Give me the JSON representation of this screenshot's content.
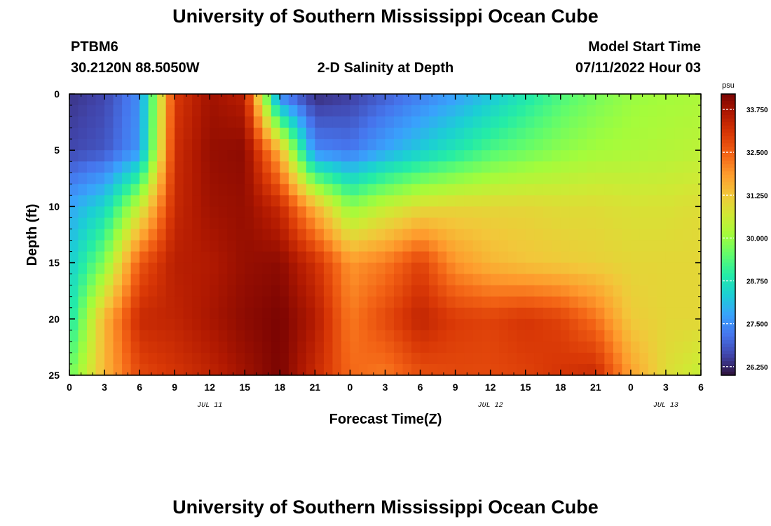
{
  "header": {
    "title": "University of Southern Mississippi Ocean Cube",
    "station_id": "PTBM6",
    "location": "30.2120N  88.5050W",
    "plot_title": "2-D Salinity at Depth",
    "model_start_label": "Model Start Time",
    "model_start_value": "07/11/2022 Hour 03"
  },
  "footer": {
    "title": "University of Southern Mississippi Ocean Cube"
  },
  "chart_data": {
    "type": "heatmap",
    "title": "2-D Salinity at Depth",
    "xlabel": "Forecast Time(Z)",
    "ylabel": "Depth (ft)",
    "x_unit": "hours from 07/11/2022 00Z",
    "xlim": [
      0,
      54
    ],
    "ylim": [
      0,
      25
    ],
    "y_inverted": true,
    "x_ticks": [
      0,
      3,
      6,
      9,
      12,
      15,
      18,
      21,
      24,
      27,
      30,
      33,
      36,
      39,
      42,
      45,
      48,
      51,
      54
    ],
    "x_tick_labels": [
      "0",
      "3",
      "6",
      "9",
      "12",
      "15",
      "18",
      "21",
      "0",
      "3",
      "6",
      "9",
      "12",
      "15",
      "18",
      "21",
      "0",
      "3",
      "6"
    ],
    "y_ticks": [
      0,
      5,
      10,
      15,
      20,
      25
    ],
    "y_tick_labels": [
      "0",
      "5",
      "10",
      "15",
      "20",
      "25"
    ],
    "date_labels": [
      {
        "x": 12,
        "text": "JUL 11"
      },
      {
        "x": 36,
        "text": "JUL 12"
      },
      {
        "x": 51,
        "text": "JUL 13"
      }
    ],
    "colorbar": {
      "unit": "psu",
      "min": 26.0,
      "max": 34.2,
      "ticks": [
        26.25,
        27.5,
        28.75,
        30.0,
        31.25,
        32.5,
        33.75
      ],
      "tick_labels": [
        "26.250",
        "27.500",
        "28.750",
        "30.000",
        "31.250",
        "32.500",
        "33.750"
      ],
      "palette": [
        "#30123b",
        "#4145ab",
        "#4675ed",
        "#39a2fc",
        "#1bcfd4",
        "#24eca6",
        "#61fc6c",
        "#a4fc3b",
        "#d1e834",
        "#f3c63a",
        "#fe9b2d",
        "#f36315",
        "#d93806",
        "#b11901",
        "#7a0402"
      ]
    },
    "grid": {
      "times": [
        0,
        3,
        6,
        9,
        12,
        15,
        18,
        21,
        24,
        27,
        30,
        33,
        36,
        39,
        42,
        45,
        48,
        51,
        54
      ],
      "depths": [
        0,
        5,
        10,
        15,
        20,
        25
      ],
      "values": [
        [
          26.4,
          26.6,
          27.5,
          33.0,
          33.8,
          33.5,
          27.2,
          26.3,
          26.5,
          26.9,
          27.3,
          27.7,
          28.2,
          28.8,
          29.3,
          29.7,
          30.0,
          30.1,
          30.2
        ],
        [
          26.6,
          26.8,
          27.6,
          33.2,
          33.9,
          34.0,
          31.5,
          27.4,
          27.2,
          27.8,
          28.3,
          28.8,
          29.3,
          29.6,
          29.9,
          30.1,
          30.2,
          30.3,
          30.4
        ],
        [
          27.8,
          28.5,
          30.5,
          33.3,
          33.8,
          33.9,
          33.3,
          31.5,
          29.9,
          30.5,
          30.9,
          31.0,
          31.0,
          31.0,
          30.9,
          30.9,
          30.8,
          30.8,
          30.9
        ],
        [
          28.3,
          29.8,
          32.6,
          33.5,
          33.6,
          33.9,
          34.0,
          33.2,
          31.9,
          32.2,
          32.9,
          31.9,
          31.5,
          31.3,
          31.2,
          31.1,
          31.0,
          31.0,
          31.0
        ],
        [
          28.7,
          31.5,
          33.3,
          33.4,
          33.7,
          34.0,
          34.2,
          33.6,
          32.2,
          32.8,
          33.4,
          33.0,
          32.9,
          33.1,
          32.9,
          32.3,
          31.2,
          31.0,
          31.0
        ],
        [
          29.6,
          31.5,
          32.8,
          33.1,
          33.4,
          33.8,
          34.2,
          33.3,
          32.4,
          32.2,
          32.7,
          32.8,
          32.8,
          32.9,
          33.1,
          33.3,
          31.8,
          30.9,
          30.5
        ]
      ]
    }
  }
}
